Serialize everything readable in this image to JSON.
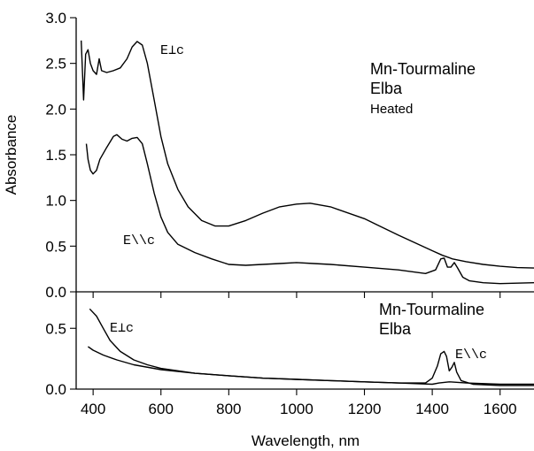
{
  "chart_data": [
    {
      "type": "line",
      "panel": "top",
      "ylabel": "Absorbance",
      "xlim": [
        350,
        1700
      ],
      "ylim": [
        0,
        3.0
      ],
      "x_ticks": [
        400,
        600,
        800,
        1000,
        1200,
        1400,
        1600
      ],
      "y_ticks": [
        "0.0",
        "0.5",
        "1.0",
        "1.5",
        "2.0",
        "2.5",
        "3.0"
      ],
      "annotations": {
        "sample_line1": "Mn-Tourmaline",
        "sample_line2": "Elba",
        "treatment": "Heated",
        "perp_label": "E⊥c",
        "par_label": "E\\\\c"
      },
      "series": [
        {
          "points": [
            [
              365,
              2.75
            ],
            [
              372,
              2.1
            ],
            [
              378,
              2.6
            ],
            [
              385,
              2.65
            ],
            [
              392,
              2.5
            ],
            [
              400,
              2.42
            ],
            [
              410,
              2.38
            ],
            [
              418,
              2.55
            ],
            [
              425,
              2.42
            ],
            [
              440,
              2.4
            ],
            [
              460,
              2.42
            ],
            [
              480,
              2.45
            ],
            [
              500,
              2.55
            ],
            [
              515,
              2.68
            ],
            [
              530,
              2.74
            ],
            [
              545,
              2.7
            ],
            [
              560,
              2.5
            ],
            [
              580,
              2.1
            ],
            [
              600,
              1.7
            ],
            [
              620,
              1.4
            ],
            [
              650,
              1.12
            ],
            [
              680,
              0.93
            ],
            [
              720,
              0.78
            ],
            [
              760,
              0.72
            ],
            [
              800,
              0.72
            ],
            [
              850,
              0.78
            ],
            [
              900,
              0.86
            ],
            [
              950,
              0.93
            ],
            [
              1000,
              0.96
            ],
            [
              1040,
              0.97
            ],
            [
              1100,
              0.93
            ],
            [
              1200,
              0.8
            ],
            [
              1300,
              0.62
            ],
            [
              1400,
              0.45
            ],
            [
              1430,
              0.4
            ],
            [
              1460,
              0.36
            ],
            [
              1500,
              0.33
            ],
            [
              1550,
              0.3
            ],
            [
              1600,
              0.28
            ],
            [
              1650,
              0.265
            ],
            [
              1700,
              0.26
            ]
          ]
        },
        {
          "points": [
            [
              380,
              1.62
            ],
            [
              385,
              1.45
            ],
            [
              392,
              1.33
            ],
            [
              400,
              1.29
            ],
            [
              410,
              1.33
            ],
            [
              420,
              1.45
            ],
            [
              440,
              1.58
            ],
            [
              460,
              1.7
            ],
            [
              470,
              1.72
            ],
            [
              485,
              1.67
            ],
            [
              500,
              1.65
            ],
            [
              515,
              1.68
            ],
            [
              530,
              1.69
            ],
            [
              545,
              1.62
            ],
            [
              560,
              1.4
            ],
            [
              580,
              1.08
            ],
            [
              600,
              0.82
            ],
            [
              620,
              0.65
            ],
            [
              650,
              0.52
            ],
            [
              700,
              0.43
            ],
            [
              750,
              0.36
            ],
            [
              800,
              0.3
            ],
            [
              850,
              0.29
            ],
            [
              900,
              0.3
            ],
            [
              950,
              0.31
            ],
            [
              1000,
              0.32
            ],
            [
              1050,
              0.31
            ],
            [
              1100,
              0.3
            ],
            [
              1200,
              0.27
            ],
            [
              1300,
              0.24
            ],
            [
              1380,
              0.2
            ],
            [
              1410,
              0.24
            ],
            [
              1425,
              0.36
            ],
            [
              1435,
              0.37
            ],
            [
              1445,
              0.27
            ],
            [
              1455,
              0.27
            ],
            [
              1465,
              0.32
            ],
            [
              1475,
              0.26
            ],
            [
              1490,
              0.16
            ],
            [
              1510,
              0.12
            ],
            [
              1550,
              0.1
            ],
            [
              1600,
              0.09
            ],
            [
              1700,
              0.1
            ]
          ]
        }
      ]
    },
    {
      "type": "line",
      "panel": "bottom",
      "xlabel": "Wavelength, nm",
      "xlim": [
        350,
        1700
      ],
      "ylim": [
        0,
        0.8
      ],
      "x_ticks": [
        400,
        600,
        800,
        1000,
        1200,
        1400,
        1600
      ],
      "y_ticks": [
        "0.0",
        "0.5"
      ],
      "annotations": {
        "sample_line1": "Mn-Tourmaline",
        "sample_line2": "Elba",
        "perp_label": "E⊥c",
        "par_label": "E\\\\c"
      },
      "series": [
        {
          "points": [
            [
              390,
              0.66
            ],
            [
              410,
              0.6
            ],
            [
              430,
              0.5
            ],
            [
              450,
              0.4
            ],
            [
              480,
              0.31
            ],
            [
              520,
              0.24
            ],
            [
              560,
              0.2
            ],
            [
              600,
              0.17
            ],
            [
              700,
              0.13
            ],
            [
              800,
              0.11
            ],
            [
              900,
              0.09
            ],
            [
              1000,
              0.08
            ],
            [
              1100,
              0.07
            ],
            [
              1200,
              0.06
            ],
            [
              1300,
              0.05
            ],
            [
              1400,
              0.04
            ],
            [
              1420,
              0.05
            ],
            [
              1450,
              0.06
            ],
            [
              1500,
              0.05
            ],
            [
              1600,
              0.04
            ],
            [
              1700,
              0.04
            ]
          ]
        },
        {
          "points": [
            [
              385,
              0.35
            ],
            [
              400,
              0.32
            ],
            [
              430,
              0.28
            ],
            [
              470,
              0.24
            ],
            [
              520,
              0.2
            ],
            [
              600,
              0.16
            ],
            [
              700,
              0.13
            ],
            [
              800,
              0.11
            ],
            [
              900,
              0.09
            ],
            [
              1000,
              0.08
            ],
            [
              1100,
              0.07
            ],
            [
              1200,
              0.06
            ],
            [
              1300,
              0.05
            ],
            [
              1380,
              0.05
            ],
            [
              1400,
              0.09
            ],
            [
              1415,
              0.19
            ],
            [
              1425,
              0.29
            ],
            [
              1435,
              0.31
            ],
            [
              1442,
              0.27
            ],
            [
              1450,
              0.15
            ],
            [
              1458,
              0.18
            ],
            [
              1465,
              0.22
            ],
            [
              1472,
              0.14
            ],
            [
              1485,
              0.07
            ],
            [
              1520,
              0.04
            ],
            [
              1600,
              0.03
            ],
            [
              1700,
              0.03
            ]
          ]
        }
      ]
    }
  ]
}
